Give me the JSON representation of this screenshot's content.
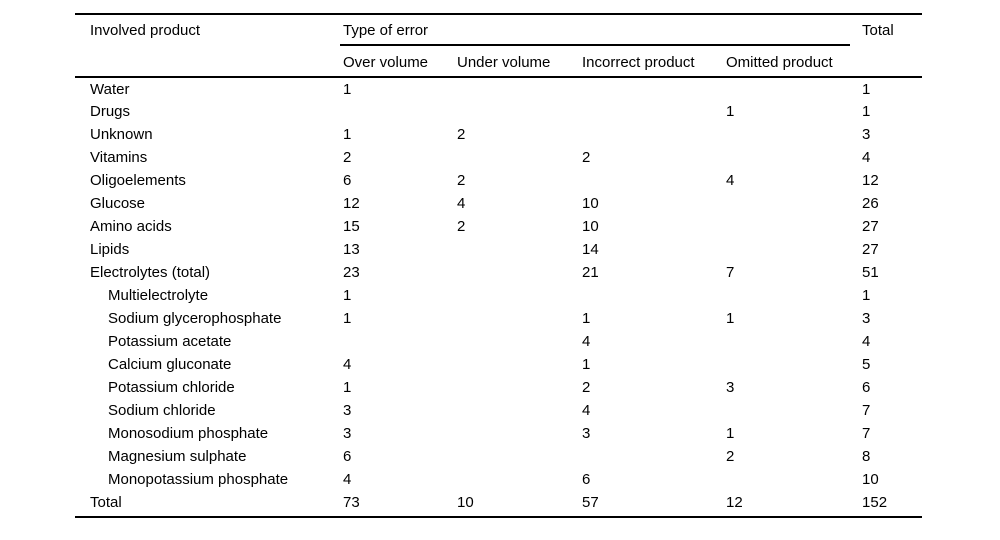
{
  "table": {
    "header": {
      "product": "Involved product",
      "group": "Type of error",
      "total": "Total",
      "errors": [
        "Over volume",
        "Under volume",
        "Incorrect product",
        "Omitted product"
      ]
    },
    "rows": [
      {
        "product": "Water",
        "indent": false,
        "is_total": false,
        "over": "1",
        "under": "",
        "incorrect": "",
        "omitted": "",
        "total": "1"
      },
      {
        "product": "Drugs",
        "indent": false,
        "is_total": false,
        "over": "",
        "under": "",
        "incorrect": "",
        "omitted": "1",
        "total": "1"
      },
      {
        "product": "Unknown",
        "indent": false,
        "is_total": false,
        "over": "1",
        "under": "2",
        "incorrect": "",
        "omitted": "",
        "total": "3"
      },
      {
        "product": "Vitamins",
        "indent": false,
        "is_total": false,
        "over": "2",
        "under": "",
        "incorrect": "2",
        "omitted": "",
        "total": "4"
      },
      {
        "product": "Oligoelements",
        "indent": false,
        "is_total": false,
        "over": "6",
        "under": "2",
        "incorrect": "",
        "omitted": "4",
        "total": "12"
      },
      {
        "product": "Glucose",
        "indent": false,
        "is_total": false,
        "over": "12",
        "under": "4",
        "incorrect": "10",
        "omitted": "",
        "total": "26"
      },
      {
        "product": "Amino acids",
        "indent": false,
        "is_total": false,
        "over": "15",
        "under": "2",
        "incorrect": "10",
        "omitted": "",
        "total": "27"
      },
      {
        "product": "Lipids",
        "indent": false,
        "is_total": false,
        "over": "13",
        "under": "",
        "incorrect": "14",
        "omitted": "",
        "total": "27"
      },
      {
        "product": "Electrolytes (total)",
        "indent": false,
        "is_total": false,
        "over": "23",
        "under": "",
        "incorrect": "21",
        "omitted": "7",
        "total": "51"
      },
      {
        "product": "Multielectrolyte",
        "indent": true,
        "is_total": false,
        "over": "1",
        "under": "",
        "incorrect": "",
        "omitted": "",
        "total": "1"
      },
      {
        "product": "Sodium glycerophosphate",
        "indent": true,
        "is_total": false,
        "over": "1",
        "under": "",
        "incorrect": "1",
        "omitted": "1",
        "total": "3"
      },
      {
        "product": "Potassium acetate",
        "indent": true,
        "is_total": false,
        "over": "",
        "under": "",
        "incorrect": "4",
        "omitted": "",
        "total": "4"
      },
      {
        "product": "Calcium gluconate",
        "indent": true,
        "is_total": false,
        "over": "4",
        "under": "",
        "incorrect": "1",
        "omitted": "",
        "total": "5"
      },
      {
        "product": "Potassium chloride",
        "indent": true,
        "is_total": false,
        "over": "1",
        "under": "",
        "incorrect": "2",
        "omitted": "3",
        "total": "6"
      },
      {
        "product": "Sodium chloride",
        "indent": true,
        "is_total": false,
        "over": "3",
        "under": "",
        "incorrect": "4",
        "omitted": "",
        "total": "7"
      },
      {
        "product": "Monosodium phosphate",
        "indent": true,
        "is_total": false,
        "over": "3",
        "under": "",
        "incorrect": "3",
        "omitted": "1",
        "total": "7"
      },
      {
        "product": "Magnesium sulphate",
        "indent": true,
        "is_total": false,
        "over": "6",
        "under": "",
        "incorrect": "",
        "omitted": "2",
        "total": "8"
      },
      {
        "product": "Monopotassium phosphate",
        "indent": true,
        "is_total": false,
        "over": "4",
        "under": "",
        "incorrect": "6",
        "omitted": "",
        "total": "10"
      },
      {
        "product": "Total",
        "indent": false,
        "is_total": true,
        "over": "73",
        "under": "10",
        "incorrect": "57",
        "omitted": "12",
        "total": "152"
      }
    ]
  }
}
